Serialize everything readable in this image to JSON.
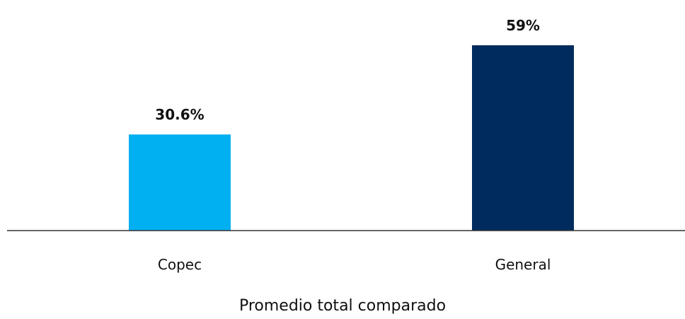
{
  "chart_data": {
    "type": "bar",
    "categories": [
      "Copec",
      "General"
    ],
    "values": [
      30.6,
      59
    ],
    "value_labels": [
      "30.6%",
      "59%"
    ],
    "colors": [
      "#00b0f0",
      "#002b5e"
    ],
    "title": "",
    "xlabel": "Promedio total comparado",
    "ylabel": "",
    "ylim": [
      0,
      70
    ],
    "grid": false,
    "legend": "none"
  }
}
